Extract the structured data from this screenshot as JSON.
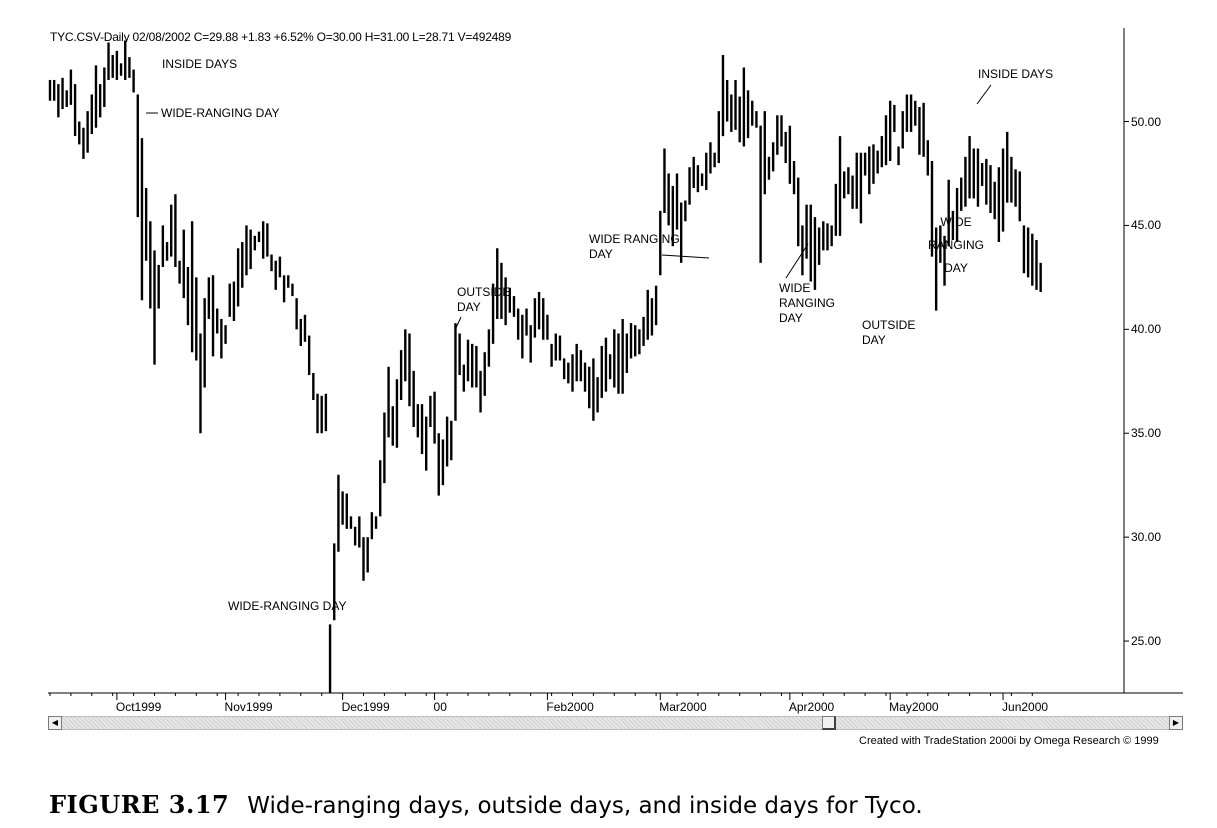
{
  "header": "TYC.CSV-Daily   02/08/2002  C=29.88  +1.83  +6.52%  O=30.00  H=31.00  L=28.71  V=492489",
  "chart_data": {
    "type": "ohlc",
    "ylim": [
      22.5,
      54.5
    ],
    "y_ticks": [
      "25.00",
      "30.00",
      "35.00",
      "40.00",
      "45.00",
      "50.00"
    ],
    "y_tick_values": [
      25,
      30,
      35,
      40,
      45,
      50
    ],
    "x_tick_labels": [
      "Oct1999",
      "Nov1999",
      "Dec1999",
      "00",
      "Feb2000",
      "Mar2000",
      "Apr2000",
      "May2000",
      "Jun2000"
    ],
    "x_tick_bar_index": [
      16,
      42,
      70,
      92,
      119,
      146,
      177,
      201,
      228
    ],
    "bars": [
      [
        52.0,
        51.0
      ],
      [
        52.0,
        51.0
      ],
      [
        51.8,
        50.2
      ],
      [
        52.1,
        50.6
      ],
      [
        51.5,
        50.7
      ],
      [
        52.5,
        50.8
      ],
      [
        51.8,
        49.3
      ],
      [
        50.0,
        48.9
      ],
      [
        49.7,
        48.2
      ],
      [
        50.5,
        48.5
      ],
      [
        51.3,
        49.4
      ],
      [
        52.7,
        49.7
      ],
      [
        51.8,
        50.2
      ],
      [
        52.6,
        50.7
      ],
      [
        53.8,
        52.0
      ],
      [
        53.2,
        52.1
      ],
      [
        53.4,
        52.0
      ],
      [
        52.8,
        52.2
      ],
      [
        53.9,
        52.0
      ],
      [
        53.1,
        52.1
      ],
      [
        52.5,
        51.4
      ],
      [
        51.3,
        45.4
      ],
      [
        49.2,
        41.4
      ],
      [
        46.8,
        43.3
      ],
      [
        45.2,
        41.0
      ],
      [
        43.8,
        38.3
      ],
      [
        43.1,
        41.0
      ],
      [
        45.0,
        43.0
      ],
      [
        44.2,
        43.3
      ],
      [
        46.0,
        43.5
      ],
      [
        46.5,
        43.0
      ],
      [
        43.3,
        42.2
      ],
      [
        44.8,
        41.5
      ],
      [
        43.0,
        40.2
      ],
      [
        45.2,
        38.9
      ],
      [
        42.5,
        38.5
      ],
      [
        39.8,
        35.0
      ],
      [
        41.5,
        37.2
      ],
      [
        42.5,
        40.5
      ],
      [
        42.6,
        38.7
      ],
      [
        41.0,
        39.8
      ],
      [
        40.5,
        38.6
      ],
      [
        40.2,
        39.3
      ],
      [
        42.2,
        40.6
      ],
      [
        42.3,
        40.4
      ],
      [
        43.9,
        41.1
      ],
      [
        44.2,
        42.0
      ],
      [
        45.0,
        42.6
      ],
      [
        44.8,
        42.9
      ],
      [
        44.5,
        43.8
      ],
      [
        44.7,
        44.2
      ],
      [
        45.2,
        43.4
      ],
      [
        45.1,
        43.5
      ],
      [
        43.6,
        42.8
      ],
      [
        43.3,
        41.9
      ],
      [
        43.5,
        42.5
      ],
      [
        42.6,
        41.3
      ],
      [
        42.6,
        42.0
      ],
      [
        42.2,
        41.6
      ],
      [
        41.5,
        40.0
      ],
      [
        40.5,
        39.2
      ],
      [
        40.7,
        39.4
      ],
      [
        39.7,
        37.8
      ],
      [
        37.9,
        36.6
      ],
      [
        36.9,
        35.0
      ],
      [
        36.8,
        35.0
      ],
      [
        36.9,
        35.1
      ],
      [
        25.8,
        22.5
      ],
      [
        29.7,
        26.0
      ],
      [
        33.0,
        29.3
      ],
      [
        32.2,
        30.6
      ],
      [
        32.1,
        30.4
      ],
      [
        31.0,
        30.4
      ],
      [
        30.5,
        29.6
      ],
      [
        31.0,
        29.5
      ],
      [
        30.0,
        27.9
      ],
      [
        30.0,
        28.3
      ],
      [
        31.2,
        29.9
      ],
      [
        31.0,
        30.4
      ],
      [
        33.7,
        31.0
      ],
      [
        36.0,
        32.6
      ],
      [
        38.2,
        34.8
      ],
      [
        36.3,
        34.4
      ],
      [
        37.6,
        34.3
      ],
      [
        39.0,
        36.6
      ],
      [
        40.0,
        37.5
      ],
      [
        39.8,
        36.3
      ],
      [
        38.0,
        35.3
      ],
      [
        36.4,
        34.8
      ],
      [
        36.4,
        34.0
      ],
      [
        35.8,
        33.2
      ],
      [
        36.8,
        35.3
      ],
      [
        37.0,
        34.5
      ],
      [
        35.0,
        32.0
      ],
      [
        34.7,
        32.5
      ],
      [
        35.8,
        33.4
      ],
      [
        35.6,
        33.7
      ],
      [
        40.3,
        35.6
      ],
      [
        39.8,
        37.8
      ],
      [
        38.3,
        37.0
      ],
      [
        39.5,
        37.5
      ],
      [
        39.3,
        37.2
      ],
      [
        39.2,
        37.2
      ],
      [
        38.0,
        36.0
      ],
      [
        38.9,
        36.8
      ],
      [
        40.0,
        38.2
      ],
      [
        42.2,
        39.3
      ],
      [
        43.9,
        40.5
      ],
      [
        43.2,
        40.5
      ],
      [
        42.5,
        40.2
      ],
      [
        42.0,
        40.8
      ],
      [
        41.6,
        40.6
      ],
      [
        41.0,
        39.5
      ],
      [
        40.7,
        38.6
      ],
      [
        41.0,
        39.7
      ],
      [
        40.2,
        38.4
      ],
      [
        41.5,
        39.6
      ],
      [
        41.8,
        40.0
      ],
      [
        41.5,
        39.5
      ],
      [
        40.7,
        39.5
      ],
      [
        39.3,
        38.2
      ],
      [
        39.8,
        38.5
      ],
      [
        39.7,
        38.5
      ],
      [
        38.6,
        37.6
      ],
      [
        38.4,
        37.4
      ],
      [
        38.8,
        37.0
      ],
      [
        39.3,
        37.5
      ],
      [
        39.0,
        37.5
      ],
      [
        38.4,
        37.0
      ],
      [
        38.2,
        36.2
      ],
      [
        38.6,
        35.6
      ],
      [
        37.7,
        36.0
      ],
      [
        39.2,
        36.7
      ],
      [
        39.6,
        37.0
      ],
      [
        38.8,
        37.6
      ],
      [
        40.0,
        37.2
      ],
      [
        39.8,
        36.9
      ],
      [
        40.5,
        36.9
      ],
      [
        39.8,
        37.9
      ],
      [
        40.3,
        38.6
      ],
      [
        40.2,
        38.7
      ],
      [
        40.0,
        38.8
      ],
      [
        40.6,
        39.2
      ],
      [
        41.9,
        39.5
      ],
      [
        41.5,
        39.7
      ],
      [
        42.1,
        40.2
      ],
      [
        45.7,
        42.6
      ],
      [
        48.7,
        45.6
      ],
      [
        47.5,
        45.0
      ],
      [
        46.9,
        44.0
      ],
      [
        47.5,
        44.8
      ],
      [
        46.1,
        43.2
      ],
      [
        46.2,
        45.2
      ],
      [
        47.8,
        46.0
      ],
      [
        48.3,
        46.8
      ],
      [
        47.9,
        46.6
      ],
      [
        47.5,
        46.9
      ],
      [
        48.5,
        46.7
      ],
      [
        49.0,
        47.5
      ],
      [
        48.5,
        47.8
      ],
      [
        50.5,
        48.0
      ],
      [
        53.2,
        49.3
      ],
      [
        52.0,
        50.0
      ],
      [
        51.3,
        49.5
      ],
      [
        52.0,
        49.6
      ],
      [
        51.2,
        49.0
      ],
      [
        52.6,
        48.8
      ],
      [
        51.5,
        49.2
      ],
      [
        51.0,
        49.8
      ],
      [
        50.5,
        49.7
      ],
      [
        49.8,
        43.2
      ],
      [
        50.5,
        46.5
      ],
      [
        48.3,
        47.2
      ],
      [
        49.0,
        47.6
      ],
      [
        50.3,
        48.4
      ],
      [
        50.3,
        48.8
      ],
      [
        49.5,
        48.0
      ],
      [
        49.8,
        47.0
      ],
      [
        48.1,
        46.5
      ],
      [
        47.3,
        44.0
      ],
      [
        45.0,
        42.6
      ],
      [
        46.0,
        43.4
      ],
      [
        46.0,
        42.3
      ],
      [
        45.4,
        41.9
      ],
      [
        44.9,
        43.1
      ],
      [
        45.2,
        43.8
      ],
      [
        45.1,
        43.8
      ],
      [
        45.0,
        44.0
      ],
      [
        47.0,
        44.5
      ],
      [
        49.3,
        44.5
      ],
      [
        47.6,
        46.3
      ],
      [
        47.8,
        46.5
      ],
      [
        47.4,
        45.8
      ],
      [
        48.5,
        45.8
      ],
      [
        48.5,
        45.1
      ],
      [
        48.5,
        47.4
      ],
      [
        48.8,
        46.5
      ],
      [
        48.9,
        47.0
      ],
      [
        48.6,
        47.5
      ],
      [
        49.3,
        47.8
      ],
      [
        50.3,
        47.9
      ],
      [
        51.0,
        48.1
      ],
      [
        50.8,
        49.5
      ],
      [
        48.8,
        47.9
      ],
      [
        50.5,
        48.7
      ],
      [
        51.3,
        49.5
      ],
      [
        51.3,
        49.5
      ],
      [
        51.0,
        49.8
      ],
      [
        50.7,
        48.4
      ],
      [
        50.9,
        48.3
      ],
      [
        49.1,
        47.4
      ],
      [
        48.1,
        43.5
      ],
      [
        44.9,
        40.9
      ],
      [
        45.0,
        43.2
      ],
      [
        44.5,
        42.1
      ],
      [
        47.2,
        44.0
      ],
      [
        45.7,
        44.3
      ],
      [
        46.8,
        44.2
      ],
      [
        47.3,
        45.7
      ],
      [
        48.3,
        45.9
      ],
      [
        49.3,
        46.3
      ],
      [
        48.7,
        46.3
      ],
      [
        48.7,
        45.9
      ],
      [
        48.0,
        46.9
      ],
      [
        48.2,
        46.0
      ],
      [
        47.9,
        45.6
      ],
      [
        47.1,
        45.3
      ],
      [
        47.8,
        44.2
      ],
      [
        48.7,
        44.7
      ],
      [
        49.5,
        46.1
      ],
      [
        48.3,
        46.1
      ],
      [
        47.7,
        45.9
      ],
      [
        47.6,
        45.2
      ],
      [
        45.0,
        42.7
      ],
      [
        44.9,
        42.5
      ],
      [
        44.6,
        42.1
      ],
      [
        44.3,
        41.9
      ],
      [
        43.2,
        41.8
      ]
    ]
  },
  "annotations": [
    {
      "key": "inside1",
      "text": "INSIDE DAYS"
    },
    {
      "key": "wide1",
      "text": "WIDE-RANGING DAY"
    },
    {
      "key": "wide2",
      "text": "WIDE-RANGING DAY"
    },
    {
      "key": "outside1",
      "line1": "OUTSIDE",
      "line2": "DAY"
    },
    {
      "key": "wide3",
      "line1": "WIDE RANGING",
      "line2": "DAY"
    },
    {
      "key": "wide4",
      "line1": "WIDE",
      "line2": "RANGING",
      "line3": "DAY"
    },
    {
      "key": "outside2",
      "line1": "OUTSIDE",
      "line2": "DAY"
    },
    {
      "key": "wide5",
      "line1": "WIDE",
      "line2": "RANGING",
      "line3": "DAY"
    },
    {
      "key": "inside2",
      "text": "INSIDE DAYS"
    }
  ],
  "scrollbar": {
    "left_arrow": "◀",
    "right_arrow": "▶"
  },
  "credit": "Created with TradeStation 2000i by Omega Research © 1999",
  "caption": {
    "figure_label": "FIGURE 3.17",
    "text": "Wide-ranging days, outside days, and inside days for Tyco."
  }
}
